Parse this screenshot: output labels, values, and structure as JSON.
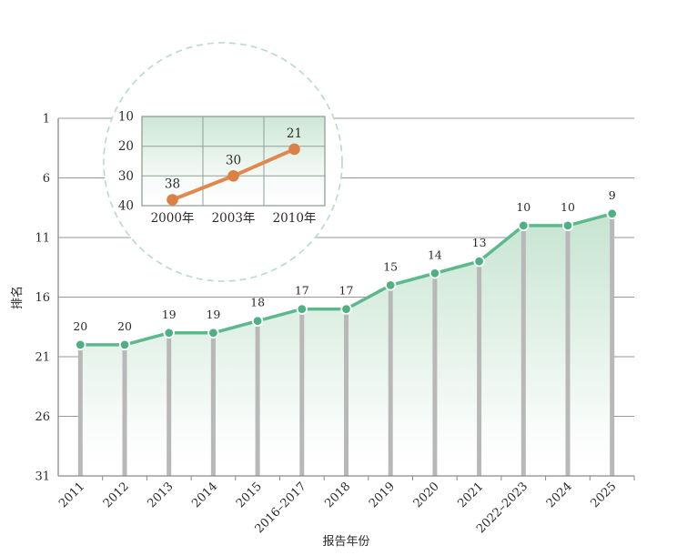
{
  "page": {
    "background": "#ffffff",
    "text_color": "#2b2b2b"
  },
  "chart_data": [
    {
      "id": "main-ranking-trend",
      "type": "line",
      "title": "",
      "xlabel": "报告年份",
      "ylabel": "排名",
      "categories": [
        "2011",
        "2012",
        "2013",
        "2014",
        "2015",
        "2016–2017",
        "2018",
        "2019",
        "2020",
        "2021",
        "2022–2023",
        "2024",
        "2025"
      ],
      "values": [
        20,
        20,
        19,
        19,
        18,
        17,
        17,
        15,
        14,
        13,
        10,
        10,
        9
      ],
      "yticks": [
        1,
        6,
        11,
        16,
        21,
        26,
        31
      ],
      "ylim": [
        31,
        1
      ],
      "y_axis_inverted": true,
      "grid": "horizontal",
      "legend": "none",
      "line_color": "#5cb98c",
      "marker_color": "#4fb183",
      "marker_edge_color": "#ffffff",
      "stem_color": "#b8b8b8",
      "area_top_color": "#c6e4d1",
      "area_bottom_color": "#ffffff",
      "grid_color": "#979797",
      "axis_color": "#8a8a8a"
    },
    {
      "id": "inset-historic-ranking",
      "type": "line",
      "title": "",
      "xlabel": "",
      "ylabel": "",
      "categories": [
        "2000年",
        "2003年",
        "2010年"
      ],
      "values": [
        38,
        30,
        21
      ],
      "yticks": [
        10,
        20,
        30,
        40
      ],
      "ylim": [
        40,
        10
      ],
      "y_axis_inverted": true,
      "grid": "both",
      "legend": "none",
      "line_color": "#e0884e",
      "marker_color": "#dc8145",
      "bg_top_color": "#cde7d6",
      "bg_bottom_color": "#ffffff",
      "frame_color": "#8fa096",
      "halo_fill": "#ffffff",
      "halo_stroke": "#b5dcc6"
    }
  ]
}
